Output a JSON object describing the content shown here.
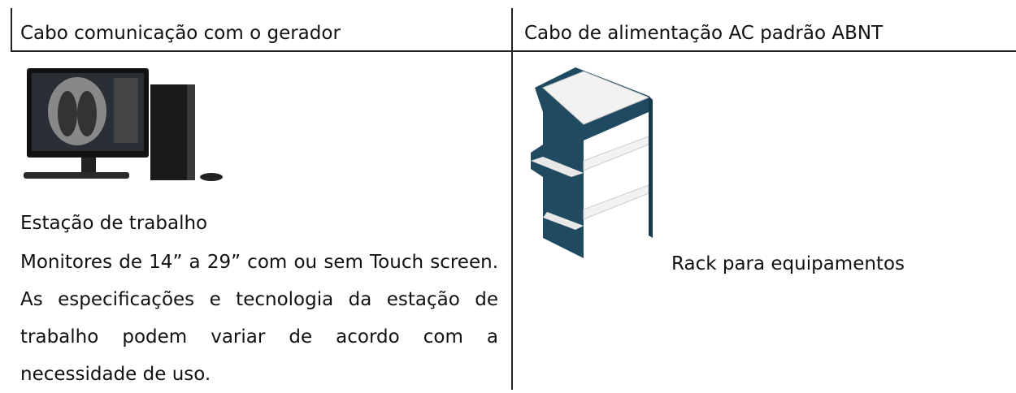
{
  "table": {
    "header": [
      "Cabo comunicação com o gerador",
      "Cabo de alimentação AC padrão ABNT"
    ],
    "rows": [
      [
        {
          "title": "Estação de trabalho",
          "description": "Monitores de 14” a 29” com ou sem Touch screen. As especificações e tecnologia da estação de trabalho podem variar de acordo com a necessidade de uso."
        },
        {
          "title": "Rack para equipamentos"
        }
      ]
    ]
  }
}
